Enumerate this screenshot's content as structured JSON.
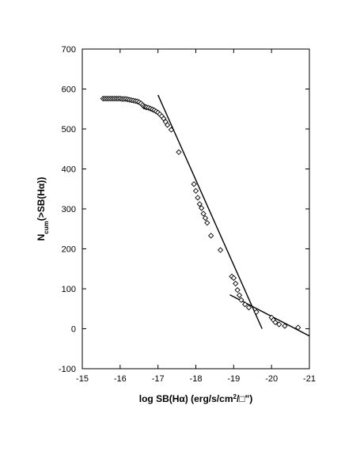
{
  "chart_data": {
    "type": "scatter",
    "xlabel": "log SB(Hα)  (erg/s/cm²/□\")",
    "ylabel": "N_cum(>SB(Hα))",
    "ylabel_main": "N",
    "ylabel_sub": "cum",
    "ylabel_rest": "(>SB(Hα))",
    "xlabel_pre": "log SB(Hα)  (erg/s/cm",
    "xlabel_sup": "2",
    "xlabel_post": "/□\")",
    "xlim": [
      -15,
      -21
    ],
    "ylim": [
      -100,
      700
    ],
    "x_reversed": true,
    "xticks": [
      -15,
      -16,
      -17,
      -18,
      -19,
      -20,
      -21
    ],
    "xtick_labels": [
      "-15",
      "-16",
      "-17",
      "-18",
      "-19",
      "-20",
      "-21"
    ],
    "yticks": [
      -100,
      0,
      100,
      200,
      300,
      400,
      500,
      600,
      700
    ],
    "ytick_labels": [
      "-100",
      "0",
      "100",
      "200",
      "300",
      "400",
      "500",
      "600",
      "700"
    ],
    "grid": false,
    "legend": "none",
    "marker": "diamond-open",
    "series": [
      {
        "values": [
          [
            -15.55,
            576
          ],
          [
            -15.6,
            576
          ],
          [
            -15.65,
            576
          ],
          [
            -15.7,
            576
          ],
          [
            -15.75,
            576
          ],
          [
            -15.8,
            576
          ],
          [
            -15.85,
            576
          ],
          [
            -15.9,
            576
          ],
          [
            -15.95,
            576
          ],
          [
            -16.0,
            576
          ],
          [
            -16.05,
            575
          ],
          [
            -16.1,
            575
          ],
          [
            -16.15,
            575
          ],
          [
            -16.2,
            574
          ],
          [
            -16.25,
            573
          ],
          [
            -16.3,
            572
          ],
          [
            -16.35,
            571
          ],
          [
            -16.4,
            570
          ],
          [
            -16.45,
            569
          ],
          [
            -16.5,
            567
          ],
          [
            -16.55,
            564
          ],
          [
            -16.6,
            560
          ],
          [
            -16.63,
            556
          ],
          [
            -16.67,
            555
          ],
          [
            -16.7,
            554
          ],
          [
            -16.75,
            553
          ],
          [
            -16.8,
            551
          ],
          [
            -16.85,
            549
          ],
          [
            -16.9,
            547
          ],
          [
            -16.95,
            544
          ],
          [
            -17.0,
            541
          ],
          [
            -17.05,
            537
          ],
          [
            -17.1,
            532
          ],
          [
            -17.15,
            526
          ],
          [
            -17.2,
            518
          ],
          [
            -17.25,
            510
          ],
          [
            -17.35,
            498
          ],
          [
            -17.55,
            442
          ],
          [
            -17.95,
            362
          ],
          [
            -18.0,
            345
          ],
          [
            -18.05,
            328
          ],
          [
            -18.1,
            312
          ],
          [
            -18.15,
            302
          ],
          [
            -18.2,
            288
          ],
          [
            -18.25,
            277
          ],
          [
            -18.3,
            265
          ],
          [
            -18.4,
            233
          ],
          [
            -18.65,
            197
          ],
          [
            -18.95,
            131
          ],
          [
            -19.0,
            127
          ],
          [
            -19.05,
            113
          ],
          [
            -19.1,
            97
          ],
          [
            -19.15,
            84
          ],
          [
            -19.2,
            72
          ],
          [
            -19.3,
            61
          ],
          [
            -19.4,
            53
          ],
          [
            -19.6,
            42
          ],
          [
            -20.0,
            28
          ],
          [
            -20.05,
            22
          ],
          [
            -20.1,
            16
          ],
          [
            -20.2,
            11
          ],
          [
            -20.35,
            7
          ],
          [
            -20.7,
            3
          ]
        ]
      }
    ],
    "fit_lines": [
      {
        "x": [
          -17.0,
          -19.75
        ],
        "y": [
          585,
          0
        ]
      },
      {
        "x": [
          -18.9,
          -21.0
        ],
        "y": [
          85,
          -18
        ]
      }
    ]
  }
}
